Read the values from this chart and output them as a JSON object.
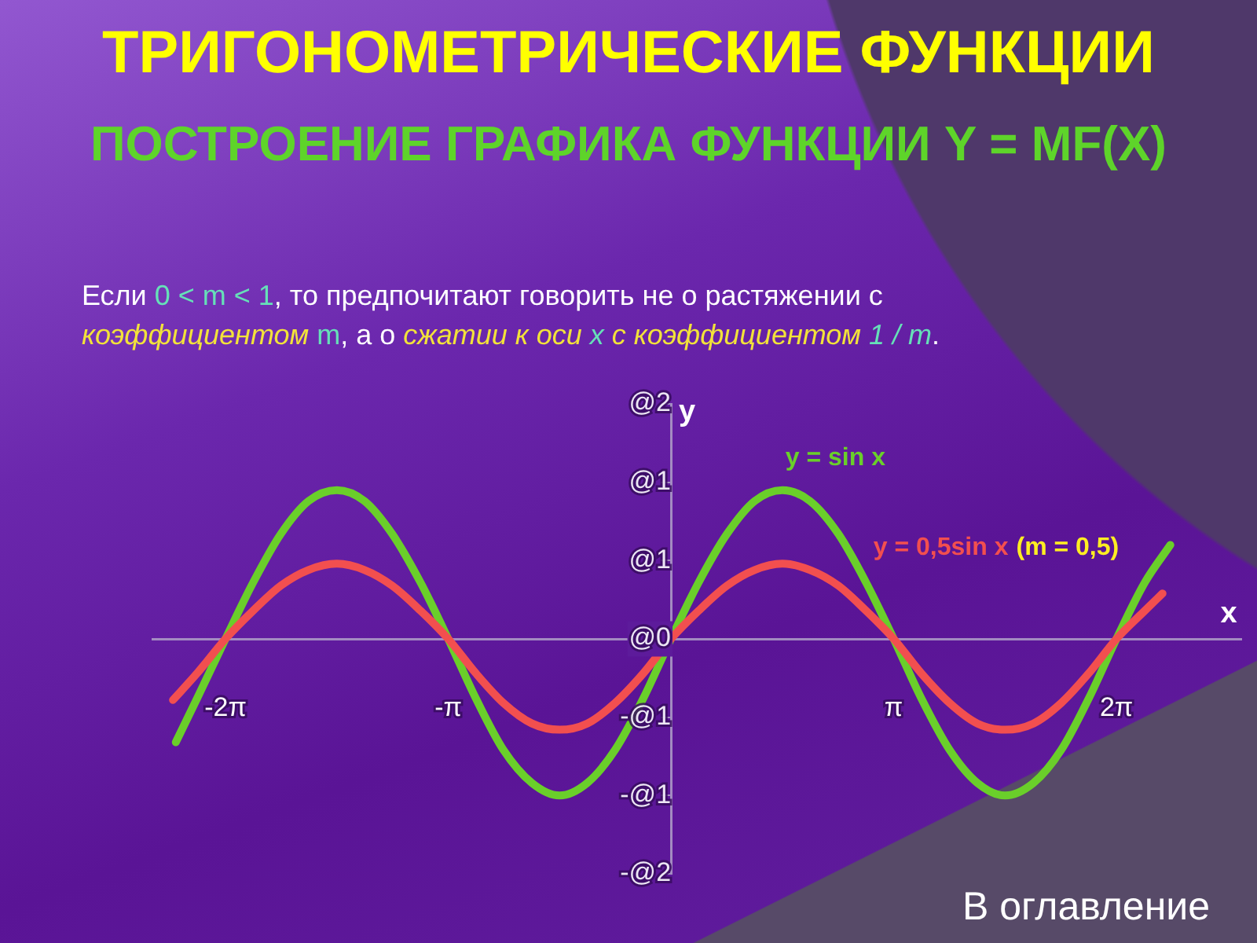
{
  "chart_data": {
    "type": "line",
    "title": "ТРИГОНОМЕТРИЧЕСКИЕ ФУНКЦИИ",
    "subtitle": "ПОСТРОЕНИЕ ГРАФИКА ФУНКЦИИ Y = MF(X)",
    "xlabel": "x",
    "ylabel": "y",
    "annotations": [
      "(m = 0,5)",
      "Если ",
      "0 < m < 1",
      ", то предпочитают говорить не о растяжении с",
      "коэффициентом",
      " m",
      ", а о ",
      "сжатии к оси",
      " x",
      " с коэффициентом",
      " 1 / m",
      ".",
      "В оглавление"
    ],
    "xlim": [
      -7.31,
      8.04
    ],
    "xticks": [
      {
        "value": -6.28,
        "label": "-2π"
      },
      {
        "value": -3.14,
        "label": "-π"
      },
      {
        "value": 3.14,
        "label": "π"
      },
      {
        "value": 6.28,
        "label": "2π"
      }
    ],
    "ylim": [
      -1.5,
      1.5
    ],
    "yticks": [
      {
        "value": 1.5,
        "label": "@2"
      },
      {
        "value": 1,
        "label": "@1"
      },
      {
        "value": 0.5,
        "label": "@1"
      },
      {
        "value": 0,
        "label": "@0"
      },
      {
        "value": -0.5,
        "label": "-@1"
      },
      {
        "value": -1,
        "label": "-@1"
      },
      {
        "value": -1.5,
        "label": "-@2"
      }
    ],
    "series": [
      {
        "name": "y = sin x",
        "color": "#6acf2a",
        "x": [
          -6.98,
          -6.68,
          -6.28,
          -5.89,
          -5.5,
          -5.11,
          -4.71,
          -4.32,
          -3.93,
          -3.53,
          -3.14,
          -2.75,
          -2.36,
          -1.96,
          -1.57,
          -1.18,
          -0.79,
          -0.39,
          0,
          0.39,
          0.79,
          1.18,
          1.57,
          1.96,
          2.36,
          2.75,
          3.14,
          3.53,
          3.93,
          4.32,
          4.71,
          5.11,
          5.5,
          5.89,
          6.28,
          6.68,
          7.04
        ],
        "values": [
          -0.66,
          -0.38,
          0,
          0.36,
          0.67,
          0.88,
          0.95,
          0.88,
          0.67,
          0.36,
          0,
          -0.38,
          -0.71,
          -0.92,
          -1.0,
          -0.92,
          -0.71,
          -0.38,
          0,
          0.36,
          0.67,
          0.88,
          0.95,
          0.88,
          0.67,
          0.36,
          0,
          -0.38,
          -0.71,
          -0.92,
          -1.0,
          -0.92,
          -0.71,
          -0.38,
          0,
          0.36,
          0.6
        ]
      },
      {
        "name": "y = 0,5sin x",
        "color": "#f24f4f",
        "x": [
          -7.02,
          -6.68,
          -6.28,
          -5.89,
          -5.5,
          -5.11,
          -4.71,
          -4.32,
          -3.93,
          -3.53,
          -3.14,
          -2.75,
          -2.36,
          -1.96,
          -1.57,
          -1.18,
          -0.79,
          -0.39,
          0,
          0.39,
          0.79,
          1.18,
          1.57,
          1.96,
          2.36,
          2.75,
          3.14,
          3.53,
          3.93,
          4.32,
          4.71,
          5.11,
          5.5,
          5.89,
          6.28,
          6.68,
          6.93
        ],
        "values": [
          -0.39,
          -0.22,
          0,
          0.18,
          0.34,
          0.44,
          0.48,
          0.44,
          0.34,
          0.18,
          0,
          -0.22,
          -0.41,
          -0.54,
          -0.58,
          -0.54,
          -0.41,
          -0.22,
          0,
          0.18,
          0.34,
          0.44,
          0.48,
          0.44,
          0.34,
          0.18,
          0,
          -0.22,
          -0.41,
          -0.54,
          -0.58,
          -0.54,
          -0.41,
          -0.22,
          0,
          0.18,
          0.29
        ]
      }
    ]
  }
}
